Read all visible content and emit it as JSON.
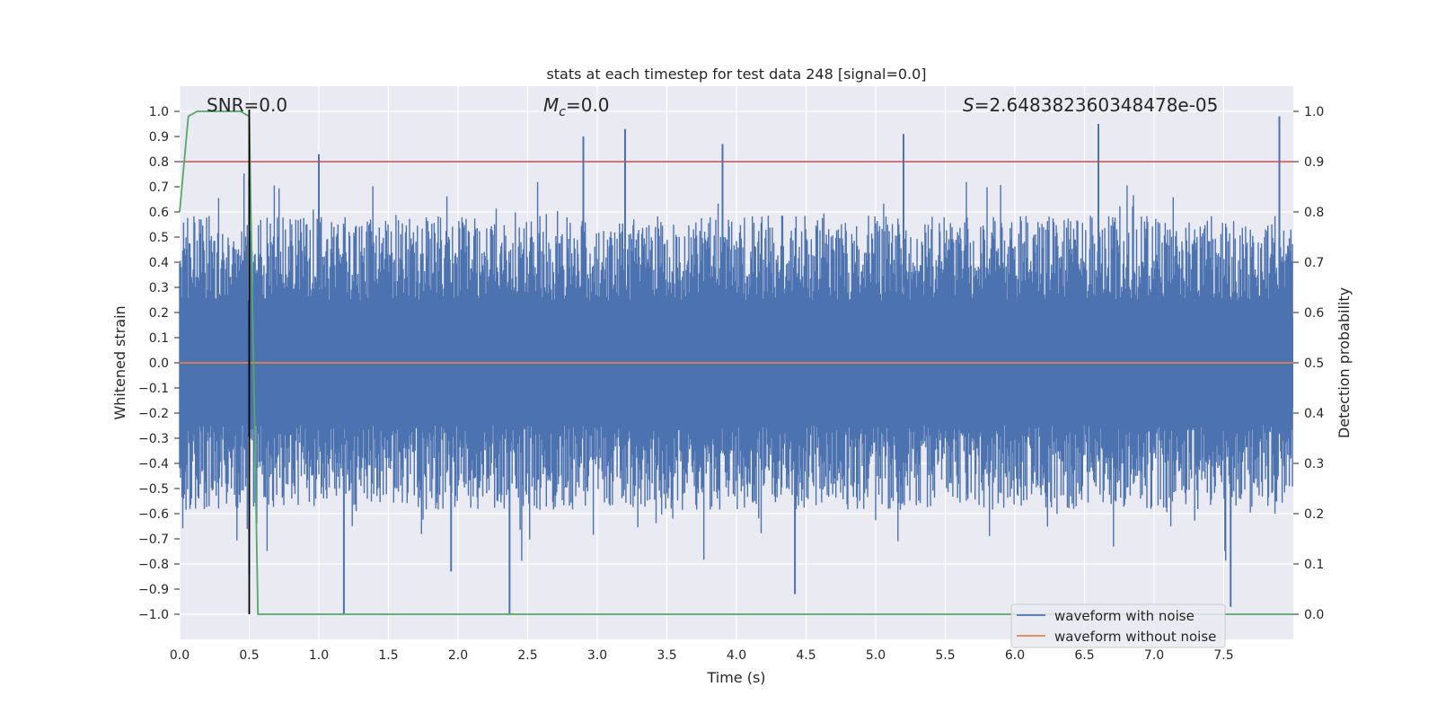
{
  "chart_data": {
    "type": "line",
    "title": "stats at each timestep for test data 248 [signal=0.0]",
    "xlabel": "Time (s)",
    "ylabel_left": "Whitened strain",
    "ylabel_right": "Detection probability",
    "xlim": [
      0.0,
      8.0
    ],
    "ylim_left": [
      -1.1,
      1.1
    ],
    "ylim_right": [
      -0.05,
      1.05
    ],
    "x_ticks": [
      "0.0",
      "0.5",
      "1.0",
      "1.5",
      "2.0",
      "2.5",
      "3.0",
      "3.5",
      "4.0",
      "4.5",
      "5.0",
      "5.5",
      "6.0",
      "6.5",
      "7.0",
      "7.5"
    ],
    "y_ticks_left": [
      "1.0",
      "0.9",
      "0.8",
      "0.7",
      "0.6",
      "0.5",
      "0.4",
      "0.3",
      "0.2",
      "0.1",
      "0.0",
      "−0.1",
      "−0.2",
      "−0.3",
      "−0.4",
      "−0.5",
      "−0.6",
      "−0.7",
      "−0.8",
      "−0.9",
      "−1.0"
    ],
    "y_ticks_right": [
      "1.0",
      "0.9",
      "0.8",
      "0.7",
      "0.6",
      "0.5",
      "0.4",
      "0.3",
      "0.2",
      "0.1",
      "0.0"
    ],
    "annotations": {
      "snr": "SNR=0.0",
      "mc": "=0.0",
      "mc_symbol": "M",
      "mc_subscript": "c",
      "s": "=2.648382360348478e-05",
      "s_symbol": "S"
    },
    "threshold": {
      "axis": "right",
      "value": 0.9,
      "color": "#c44e52"
    },
    "marker_line": {
      "x": 0.5,
      "color": "#000000"
    },
    "series": [
      {
        "name": "waveform with noise",
        "axis": "left",
        "color": "#4c72b0",
        "description_envelope": {
          "upper_typical": 0.45,
          "lower_typical": -0.45,
          "peaks_up": [
            [
              0.5,
              0.73
            ],
            [
              1.0,
              0.83
            ],
            [
              2.9,
              0.9
            ],
            [
              3.2,
              0.93
            ],
            [
              3.9,
              0.87
            ],
            [
              5.2,
              0.91
            ],
            [
              6.6,
              0.95
            ],
            [
              7.9,
              0.98
            ]
          ],
          "peaks_down": [
            [
              0.5,
              -0.84
            ],
            [
              1.18,
              -1.0
            ],
            [
              1.95,
              -0.83
            ],
            [
              2.37,
              -1.0
            ],
            [
              4.42,
              -0.92
            ],
            [
              7.55,
              -0.97
            ]
          ]
        }
      },
      {
        "name": "waveform without noise",
        "axis": "left",
        "color": "#dd8452",
        "x": [
          0.0,
          8.0
        ],
        "y": [
          0.0,
          0.0
        ]
      },
      {
        "axis": "right",
        "color": "#55a868",
        "x": [
          0.0,
          0.0625,
          0.125,
          0.25,
          0.4375,
          0.5,
          0.5625,
          0.625,
          8.0
        ],
        "y": [
          0.8,
          0.99,
          1.0,
          1.0,
          1.0,
          0.99,
          0.0,
          -0.0,
          0.0
        ]
      }
    ],
    "legend": {
      "position": "lower-right",
      "entries": [
        "waveform with noise",
        "waveform without noise"
      ]
    },
    "grid": true,
    "background": "#eaeaf2"
  }
}
